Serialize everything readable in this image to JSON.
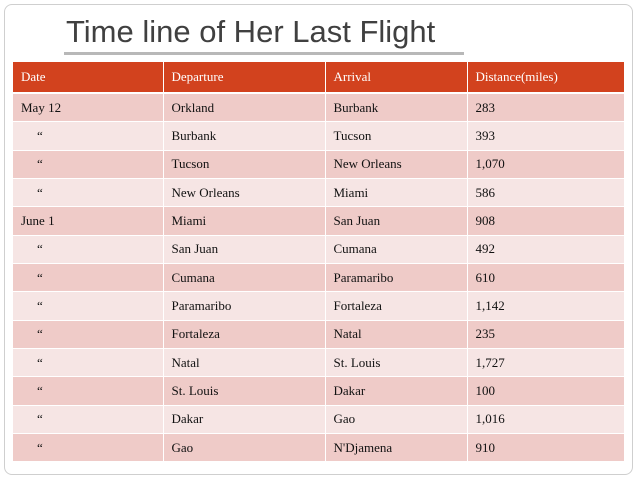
{
  "title": "Time line of Her Last Flight",
  "table": {
    "headers": [
      "Date",
      "Departure",
      "Arrival",
      "Distance(miles)"
    ],
    "rows": [
      {
        "date": "May 12",
        "departure": "Orkland",
        "arrival": "Burbank",
        "distance": "283"
      },
      {
        "date": "“",
        "departure": "Burbank",
        "arrival": "Tucson",
        "distance": "393"
      },
      {
        "date": "“",
        "departure": "Tucson",
        "arrival": "New Orleans",
        "distance": "1,070"
      },
      {
        "date": "“",
        "departure": "New Orleans",
        "arrival": "Miami",
        "distance": "586"
      },
      {
        "date": "June 1",
        "departure": "Miami",
        "arrival": "San Juan",
        "distance": "908"
      },
      {
        "date": "“",
        "departure": "San Juan",
        "arrival": "Cumana",
        "distance": "492"
      },
      {
        "date": "“",
        "departure": "Cumana",
        "arrival": "Paramaribo",
        "distance": "610"
      },
      {
        "date": "“",
        "departure": "Paramaribo",
        "arrival": "Fortaleza",
        "distance": "1,142"
      },
      {
        "date": "“",
        "departure": "Fortaleza",
        "arrival": "Natal",
        "distance": "235"
      },
      {
        "date": "“",
        "departure": "Natal",
        "arrival": "St. Louis",
        "distance": "1,727"
      },
      {
        "date": "“",
        "departure": "St. Louis",
        "arrival": "Dakar",
        "distance": "100"
      },
      {
        "date": "“",
        "departure": "Dakar",
        "arrival": "Gao",
        "distance": "1,016"
      },
      {
        "date": "“",
        "departure": "Gao",
        "arrival": "N'Djamena",
        "distance": "910"
      }
    ]
  },
  "colors": {
    "header_bg": "#d2421e",
    "row_dark": "#efcbc8",
    "row_light": "#f6e5e4",
    "title_text": "#404040"
  }
}
